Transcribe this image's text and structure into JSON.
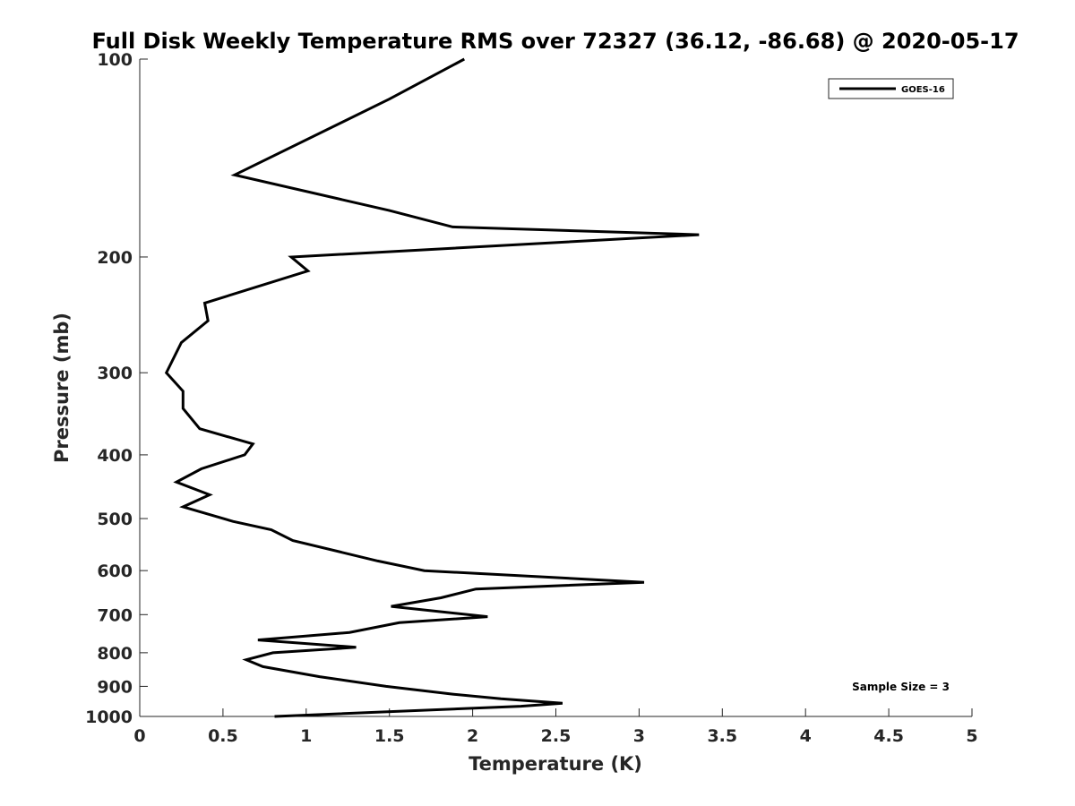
{
  "chart_data": {
    "type": "line",
    "title": "Full Disk Weekly Temperature RMS over 72327 (36.12, -86.68) @ 2020-05-17",
    "xlabel": "Temperature (K)",
    "ylabel": "Pressure (mb)",
    "xlim": [
      0,
      5
    ],
    "ylim": [
      100,
      1000
    ],
    "y_scale": "log",
    "y_reversed": true,
    "x_ticks": [
      "0",
      "0.5",
      "1",
      "1.5",
      "2",
      "2.5",
      "3",
      "3.5",
      "4",
      "4.5",
      "5"
    ],
    "x_tick_values": [
      0,
      0.5,
      1,
      1.5,
      2,
      2.5,
      3,
      3.5,
      4,
      4.5,
      5
    ],
    "y_ticks": [
      "100",
      "200",
      "300",
      "400",
      "500",
      "600",
      "700",
      "800",
      "900",
      "1000"
    ],
    "y_tick_values": [
      100,
      200,
      300,
      400,
      500,
      600,
      700,
      800,
      900,
      1000
    ],
    "grid": false,
    "legend_position": "top-right",
    "color": "#000000",
    "series": [
      {
        "name": "GOES-16",
        "x": [
          1.95,
          1.5,
          0.57,
          1.5,
          1.88,
          3.36,
          0.91,
          1.01,
          0.39,
          0.41,
          0.25,
          0.16,
          0.26,
          0.26,
          0.36,
          0.68,
          0.63,
          0.37,
          0.22,
          0.42,
          0.26,
          0.56,
          0.79,
          0.92,
          1.43,
          1.71,
          3.03,
          2.02,
          1.81,
          1.51,
          2.09,
          1.56,
          1.26,
          0.71,
          1.3,
          0.8,
          0.64,
          0.74,
          1.08,
          1.48,
          1.88,
          2.17,
          2.54,
          2.29,
          0.81
        ],
        "y": [
          100,
          115,
          150,
          170,
          180,
          185,
          200,
          210,
          235,
          250,
          270,
          300,
          320,
          340,
          365,
          385,
          400,
          420,
          440,
          460,
          480,
          505,
          520,
          540,
          580,
          600,
          625,
          640,
          660,
          680,
          705,
          720,
          745,
          765,
          785,
          800,
          820,
          840,
          870,
          900,
          925,
          940,
          955,
          965,
          1000
        ]
      }
    ],
    "annotations": [
      "Sample Size = 3"
    ]
  }
}
